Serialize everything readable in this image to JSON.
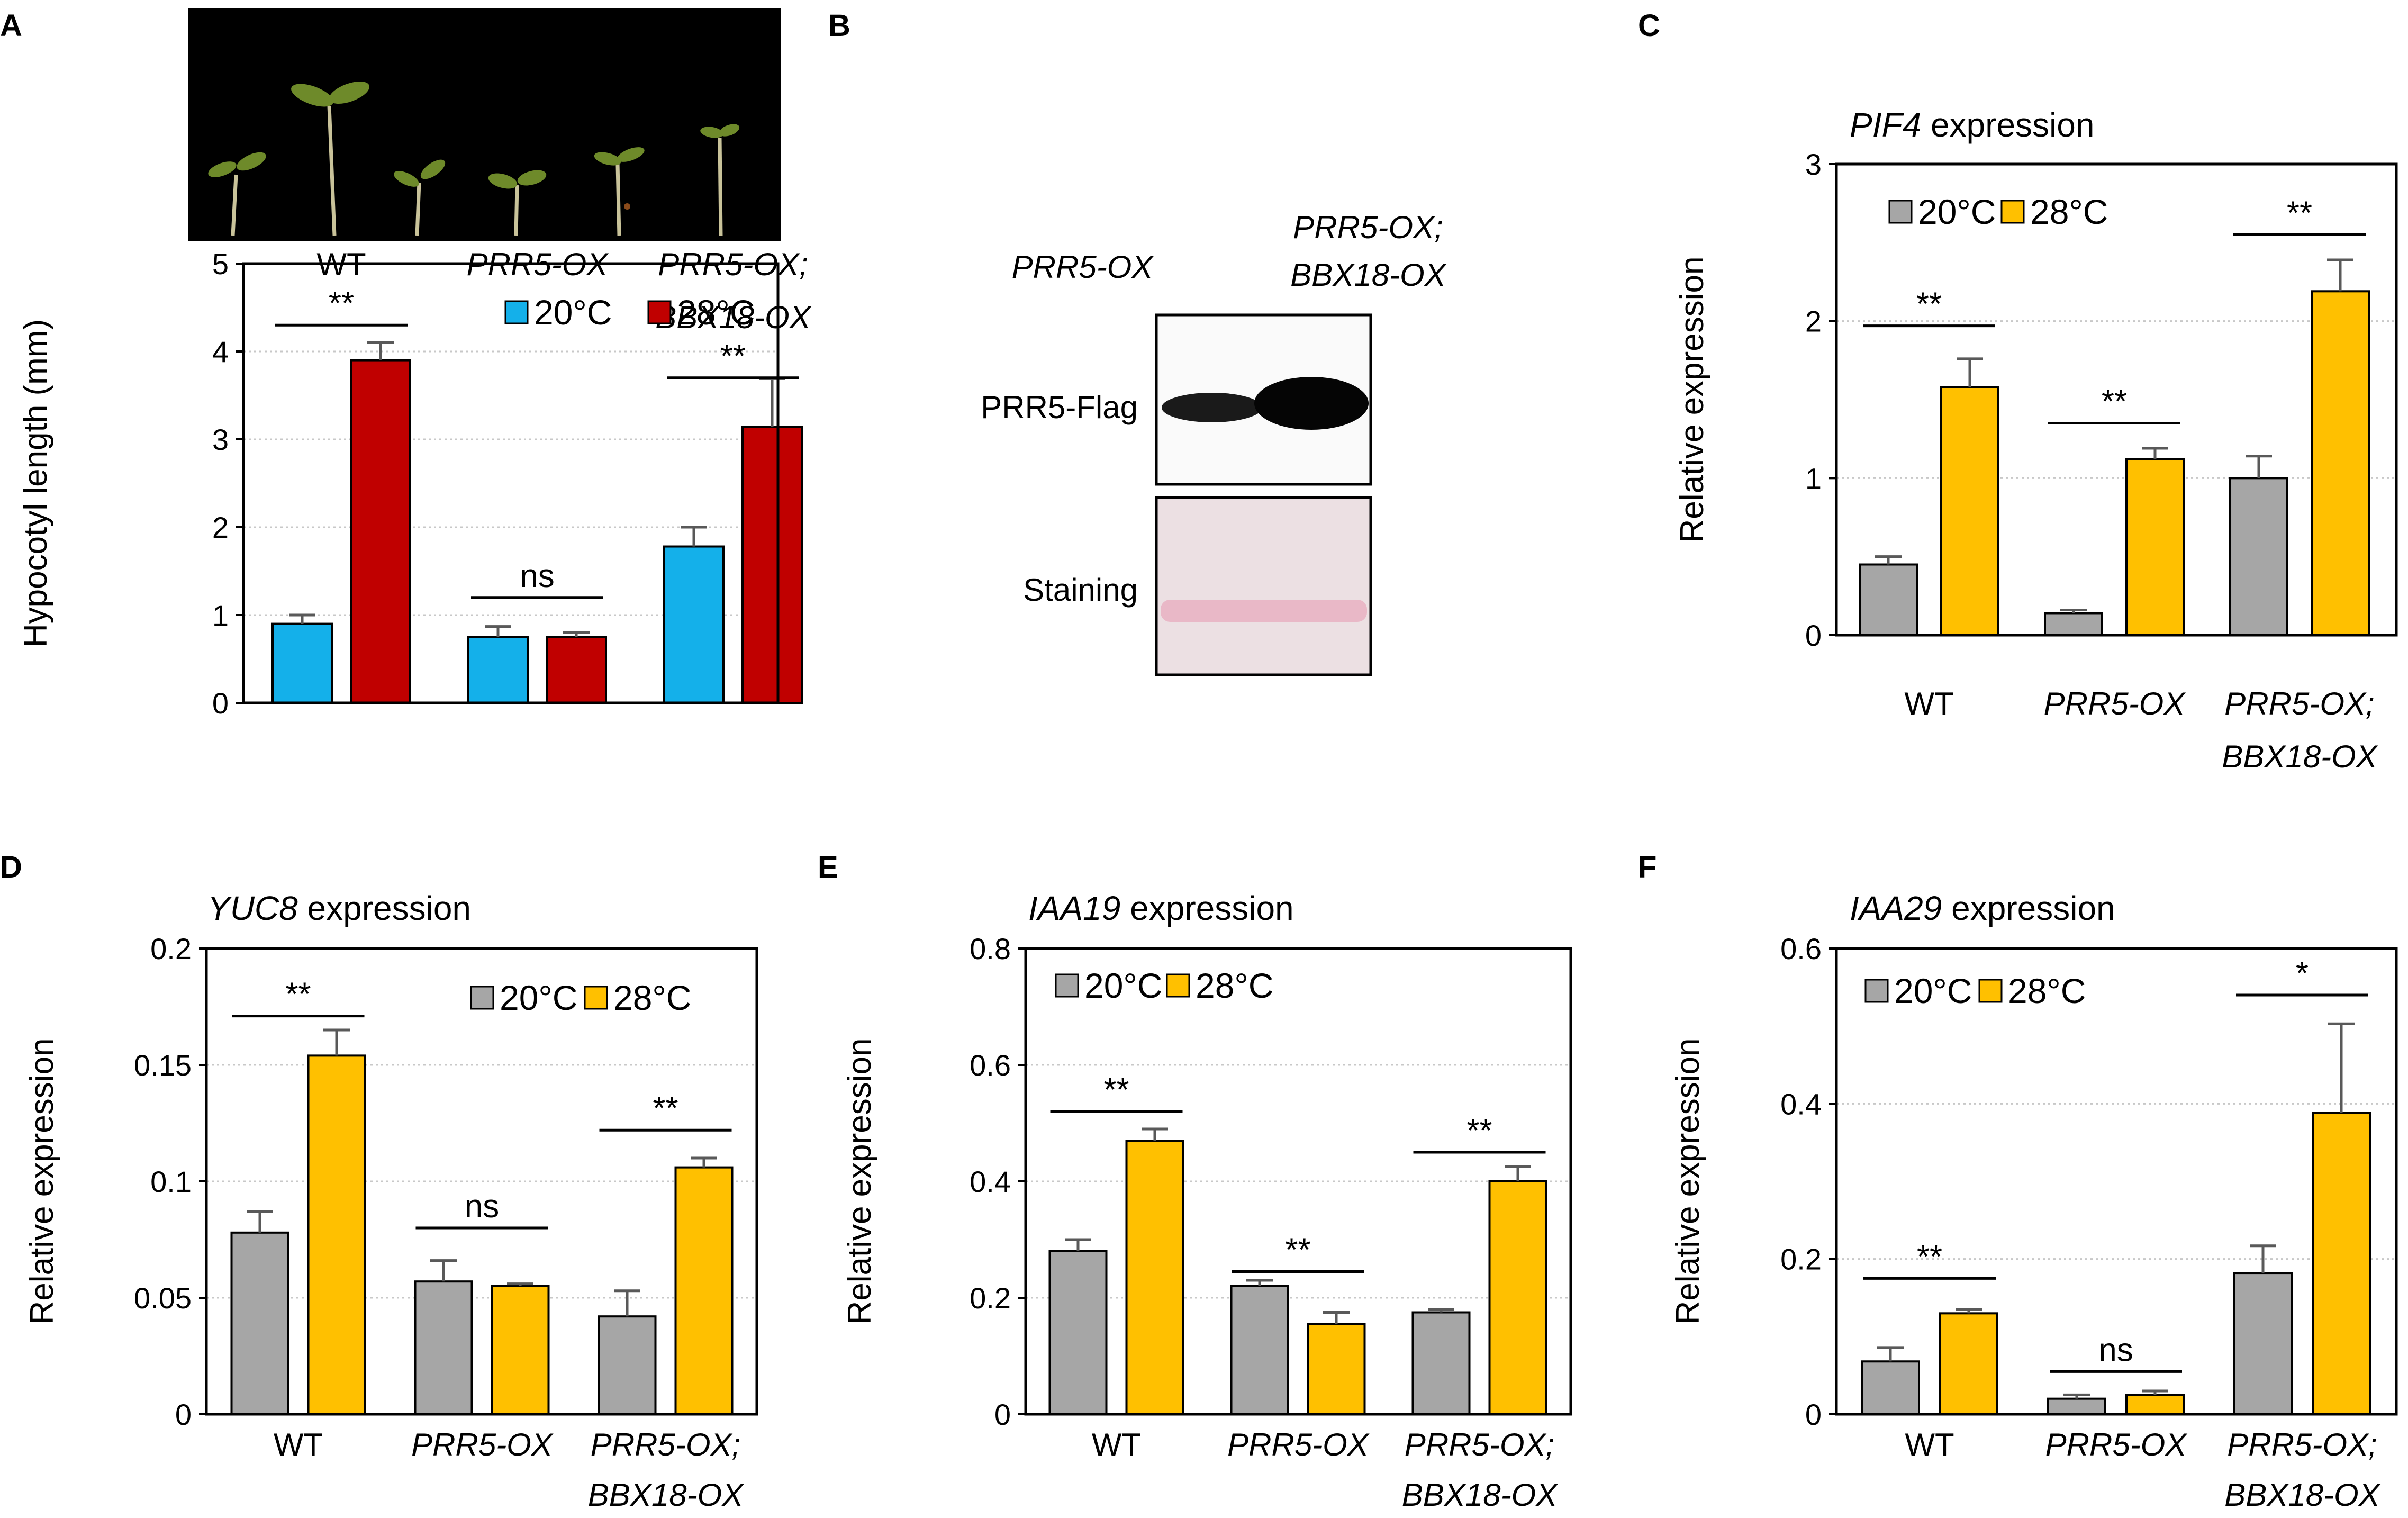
{
  "panels": [
    {
      "letter": "A"
    },
    {
      "letter": "B"
    },
    {
      "letter": "C"
    },
    {
      "letter": "D"
    },
    {
      "letter": "E"
    },
    {
      "letter": "F"
    }
  ],
  "blot": {
    "lanes": [
      "PRR5-OX",
      "PRR5-OX;",
      "BBX18-OX"
    ],
    "rows": [
      "PRR5-Flag",
      "Staining"
    ]
  },
  "colors": {
    "blue": "#14b0ea",
    "red": "#c00000",
    "gray": "#a6a6a6",
    "gold": "#ffc000"
  },
  "chart_data": [
    {
      "panel": "A",
      "type": "bar",
      "title_italic": "",
      "title_rest": "",
      "ylabel": "Hypocotyl length (mm)",
      "ylim": [
        0,
        5
      ],
      "ticks": [
        "0",
        "1",
        "2",
        "3",
        "4",
        "5"
      ],
      "tick_values": [
        0,
        1,
        2,
        3,
        4,
        5
      ],
      "grid": true,
      "categories": [
        [
          "WT"
        ],
        [
          "PRR5-OX"
        ],
        [
          "PRR5-OX;",
          "BBX18-OX"
        ]
      ],
      "category_italic": [
        false,
        true,
        true
      ],
      "series": [
        {
          "name": "20°C",
          "color": "#14b0ea",
          "values": [
            0.9,
            0.75,
            1.78
          ],
          "errors": [
            0.1,
            0.12,
            0.22
          ]
        },
        {
          "name": "28°C",
          "color": "#c00000",
          "values": [
            3.9,
            0.75,
            3.14
          ],
          "errors": [
            0.2,
            0.05,
            0.55
          ]
        }
      ],
      "significance": [
        "**",
        "ns",
        "**"
      ],
      "sig_level": [
        4.3,
        1.2,
        3.7
      ]
    },
    {
      "panel": "C",
      "type": "bar",
      "title_italic": "PIF4",
      "title_rest": " expression",
      "ylabel": "Relative expression",
      "ylim": [
        0,
        3
      ],
      "ticks": [
        "0",
        "1",
        "2",
        "3"
      ],
      "tick_values": [
        0,
        1,
        2,
        3
      ],
      "grid": true,
      "categories": [
        [
          "WT"
        ],
        [
          "PRR5-OX"
        ],
        [
          "PRR5-OX;",
          "BBX18-OX"
        ]
      ],
      "category_italic": [
        false,
        true,
        true
      ],
      "series": [
        {
          "name": "20°C",
          "color": "#a6a6a6",
          "values": [
            0.45,
            0.14,
            1.0
          ],
          "errors": [
            0.05,
            0.02,
            0.14
          ]
        },
        {
          "name": "28°C",
          "color": "#ffc000",
          "values": [
            1.58,
            1.12,
            2.19
          ],
          "errors": [
            0.18,
            0.07,
            0.2
          ]
        }
      ],
      "significance": [
        "**",
        "**",
        "**"
      ],
      "sig_level": [
        1.97,
        1.35,
        2.55
      ]
    },
    {
      "panel": "D",
      "type": "bar",
      "title_italic": "YUC8",
      "title_rest": " expression",
      "ylabel": "Relative expression",
      "ylim": [
        0,
        0.2
      ],
      "ticks": [
        "0",
        "0.05",
        "0.1",
        "0.15",
        "0.2"
      ],
      "tick_values": [
        0,
        0.05,
        0.1,
        0.15,
        0.2
      ],
      "grid": true,
      "categories": [
        [
          "WT"
        ],
        [
          "PRR5-OX"
        ],
        [
          "PRR5-OX;",
          "BBX18-OX"
        ]
      ],
      "category_italic": [
        false,
        true,
        true
      ],
      "series": [
        {
          "name": "20°C",
          "color": "#a6a6a6",
          "values": [
            0.078,
            0.057,
            0.042
          ],
          "errors": [
            0.009,
            0.009,
            0.011
          ]
        },
        {
          "name": "28°C",
          "color": "#ffc000",
          "values": [
            0.154,
            0.055,
            0.106
          ],
          "errors": [
            0.011,
            0.001,
            0.004
          ]
        }
      ],
      "significance": [
        "**",
        "ns",
        "**"
      ],
      "sig_level": [
        0.171,
        0.08,
        0.122
      ]
    },
    {
      "panel": "E",
      "type": "bar",
      "title_italic": "IAA19",
      "title_rest": " expression",
      "ylabel": "Relative expression",
      "ylim": [
        0,
        0.8
      ],
      "ticks": [
        "0",
        "0.2",
        "0.4",
        "0.6",
        "0.8"
      ],
      "tick_values": [
        0,
        0.2,
        0.4,
        0.6,
        0.8
      ],
      "grid": true,
      "categories": [
        [
          "WT"
        ],
        [
          "PRR5-OX"
        ],
        [
          "PRR5-OX;",
          "BBX18-OX"
        ]
      ],
      "category_italic": [
        false,
        true,
        true
      ],
      "series": [
        {
          "name": "20°C",
          "color": "#a6a6a6",
          "values": [
            0.28,
            0.22,
            0.175
          ],
          "errors": [
            0.02,
            0.01,
            0.005
          ]
        },
        {
          "name": "28°C",
          "color": "#ffc000",
          "values": [
            0.47,
            0.155,
            0.4
          ],
          "errors": [
            0.02,
            0.02,
            0.025
          ]
        }
      ],
      "significance": [
        "**",
        "**",
        "**"
      ],
      "sig_level": [
        0.52,
        0.245,
        0.45
      ]
    },
    {
      "panel": "F",
      "type": "bar",
      "title_italic": "IAA29",
      "title_rest": " expression",
      "ylabel": "Relative expression",
      "ylim": [
        0,
        0.6
      ],
      "ticks": [
        "0",
        "0.2",
        "0.4",
        "0.6"
      ],
      "tick_values": [
        0,
        0.2,
        0.4,
        0.6
      ],
      "grid": true,
      "categories": [
        [
          "WT"
        ],
        [
          "PRR5-OX"
        ],
        [
          "PRR5-OX;",
          "BBX18-OX"
        ]
      ],
      "category_italic": [
        false,
        true,
        true
      ],
      "series": [
        {
          "name": "20°C",
          "color": "#a6a6a6",
          "values": [
            0.068,
            0.02,
            0.182
          ],
          "errors": [
            0.018,
            0.005,
            0.035
          ]
        },
        {
          "name": "28°C",
          "color": "#ffc000",
          "values": [
            0.13,
            0.025,
            0.388
          ],
          "errors": [
            0.005,
            0.005,
            0.115
          ]
        }
      ],
      "significance": [
        "**",
        "ns",
        "*"
      ],
      "sig_level": [
        0.175,
        0.055,
        0.54
      ]
    }
  ]
}
